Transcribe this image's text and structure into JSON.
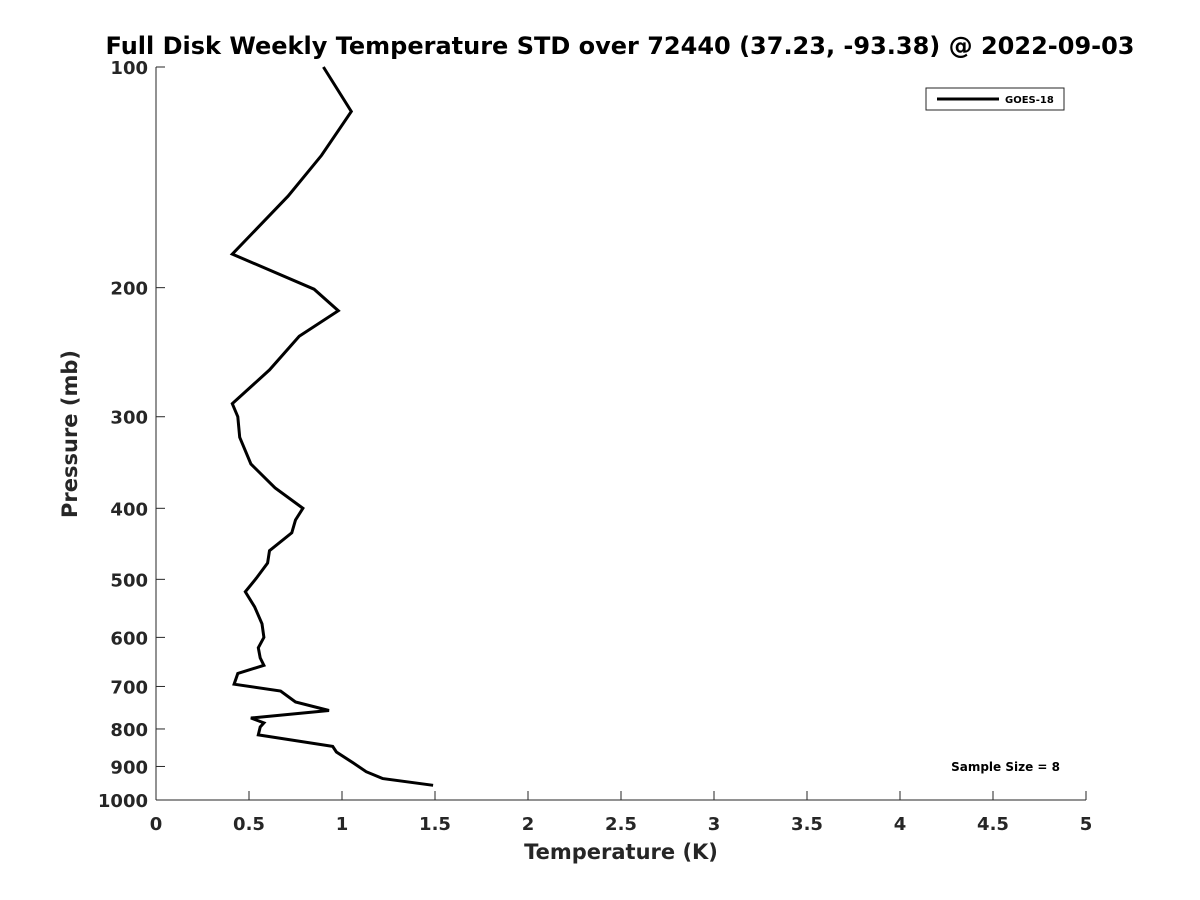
{
  "chart_data": {
    "type": "line",
    "title": "Full Disk Weekly Temperature STD over 72440 (37.23, -93.38) @ 2022-09-03",
    "xlabel": "Temperature (K)",
    "ylabel": "Pressure (mb)",
    "xlim": [
      0,
      5
    ],
    "ylim": [
      100,
      1000
    ],
    "y_scale": "log",
    "y_reversed": true,
    "grid": false,
    "legend_position": "top-right",
    "x_ticks": [
      "0",
      "0.5",
      "1",
      "1.5",
      "2",
      "2.5",
      "3",
      "3.5",
      "4",
      "4.5",
      "5"
    ],
    "y_ticks": [
      "100",
      "200",
      "300",
      "400",
      "500",
      "600",
      "700",
      "800",
      "900",
      "1000"
    ],
    "series": [
      {
        "name": "GOES-18",
        "color": "#000000",
        "x": [
          0.9,
          1.05,
          0.89,
          0.71,
          0.41,
          0.85,
          0.98,
          0.77,
          0.61,
          0.41,
          0.44,
          0.45,
          0.51,
          0.64,
          0.79,
          0.75,
          0.73,
          0.61,
          0.6,
          0.54,
          0.48,
          0.53,
          0.57,
          0.58,
          0.55,
          0.56,
          0.58,
          0.44,
          0.42,
          0.67,
          0.75,
          0.93,
          0.51,
          0.58,
          0.56,
          0.55,
          0.95,
          0.97,
          1.06,
          1.13,
          1.22,
          1.49
        ],
        "y": [
          100,
          115,
          132,
          150,
          180,
          201,
          215,
          233,
          259,
          288,
          300,
          320,
          348,
          375,
          400,
          415,
          432,
          457,
          475,
          498,
          520,
          545,
          575,
          600,
          620,
          640,
          655,
          672,
          695,
          710,
          735,
          755,
          773,
          785,
          795,
          815,
          845,
          860,
          890,
          915,
          935,
          955
        ]
      }
    ],
    "annotations": [
      {
        "text": "Sample Size = 8"
      }
    ]
  }
}
